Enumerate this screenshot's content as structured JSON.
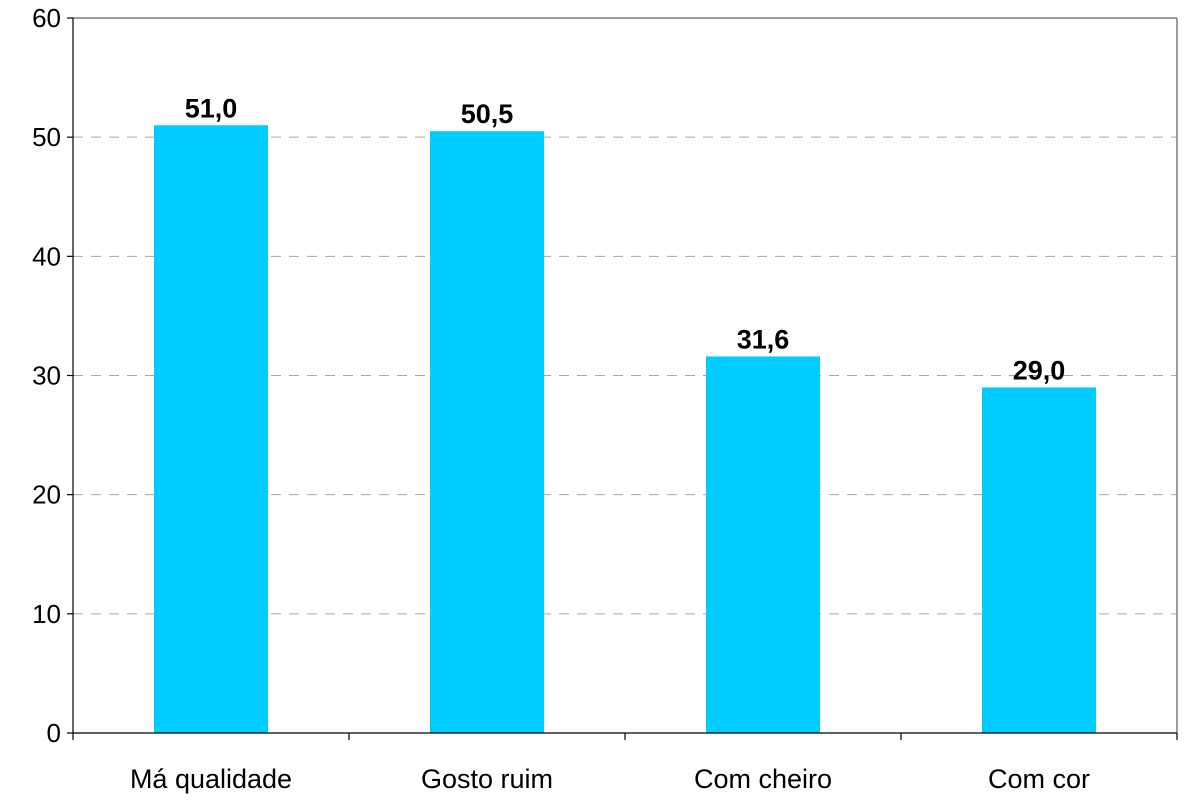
{
  "chart_data": {
    "type": "bar",
    "title": "",
    "xlabel": "",
    "ylabel": "",
    "categories": [
      "Má qualidade",
      "Gosto ruim",
      "Com cheiro",
      "Com cor"
    ],
    "values": [
      51.0,
      50.5,
      31.6,
      29.0
    ],
    "value_labels": [
      "51,0",
      "50,5",
      "31,6",
      "29,0"
    ],
    "ylim": [
      0,
      60
    ],
    "yticks": [
      0,
      10,
      20,
      30,
      40,
      50,
      60
    ],
    "ytick_labels": [
      "0",
      "10",
      "20",
      "30",
      "40",
      "50",
      "60"
    ],
    "grid": true,
    "legend": "none",
    "bar_color": "#00CCFF"
  }
}
